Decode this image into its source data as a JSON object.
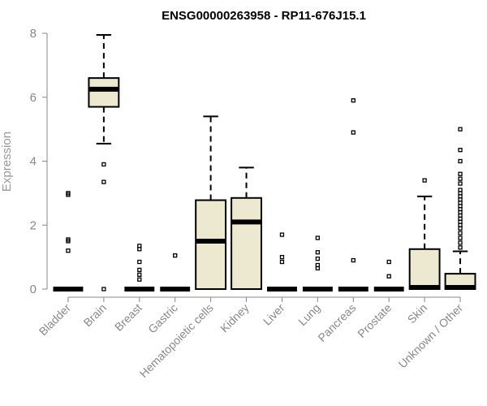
{
  "chart_data": {
    "type": "boxplot",
    "title": "ENSG00000263958 - RP11-676J15.1",
    "xlabel": "",
    "ylabel": "Expression",
    "ylim": [
      0,
      8
    ],
    "yticks": [
      0,
      2,
      4,
      6,
      8
    ],
    "colors": {
      "box_fill": "#ede8d0",
      "stroke": "#000000",
      "axis": "#888888",
      "tick_label": "#888888"
    },
    "categories": [
      "Bladder",
      "Brain",
      "Breast",
      "Gastric",
      "Hematopoietic cells",
      "Kidney",
      "Liver",
      "Lung",
      "Pancreas",
      "Prostate",
      "Skin",
      "Unknown / Other"
    ],
    "boxes": [
      {
        "name": "Bladder",
        "whisker_low": 0,
        "q1": 0,
        "median": 0,
        "q3": 0,
        "whisker_high": 0,
        "outliers": [
          1.2,
          1.5,
          1.55,
          2.95,
          3.0
        ]
      },
      {
        "name": "Brain",
        "whisker_low": 4.55,
        "q1": 5.7,
        "median": 6.25,
        "q3": 6.6,
        "whisker_high": 7.95,
        "outliers": [
          0,
          3.35,
          3.9
        ]
      },
      {
        "name": "Breast",
        "whisker_low": 0,
        "q1": 0,
        "median": 0,
        "q3": 0,
        "whisker_high": 0,
        "outliers": [
          0.3,
          0.45,
          0.6,
          0.85,
          1.25,
          1.35
        ]
      },
      {
        "name": "Gastric",
        "whisker_low": 0,
        "q1": 0,
        "median": 0,
        "q3": 0,
        "whisker_high": 0,
        "outliers": [
          1.05
        ]
      },
      {
        "name": "Hematopoietic cells",
        "whisker_low": 0,
        "q1": 0,
        "median": 1.5,
        "q3": 2.78,
        "whisker_high": 5.4,
        "outliers": []
      },
      {
        "name": "Kidney",
        "whisker_low": 0,
        "q1": 0,
        "median": 2.1,
        "q3": 2.85,
        "whisker_high": 3.8,
        "outliers": []
      },
      {
        "name": "Liver",
        "whisker_low": 0,
        "q1": 0,
        "median": 0,
        "q3": 0,
        "whisker_high": 0,
        "outliers": [
          0.85,
          1.0,
          1.7
        ]
      },
      {
        "name": "Lung",
        "whisker_low": 0,
        "q1": 0,
        "median": 0,
        "q3": 0,
        "whisker_high": 0,
        "outliers": [
          0.65,
          0.75,
          0.95,
          1.15,
          1.6
        ]
      },
      {
        "name": "Pancreas",
        "whisker_low": 0,
        "q1": 0,
        "median": 0,
        "q3": 0,
        "whisker_high": 0,
        "outliers": [
          0.9,
          4.9,
          5.9
        ]
      },
      {
        "name": "Prostate",
        "whisker_low": 0,
        "q1": 0,
        "median": 0,
        "q3": 0,
        "whisker_high": 0,
        "outliers": [
          0.4,
          0.85
        ]
      },
      {
        "name": "Skin",
        "whisker_low": 0,
        "q1": 0,
        "median": 0.05,
        "q3": 1.25,
        "whisker_high": 2.9,
        "outliers": [
          3.4
        ]
      },
      {
        "name": "Unknown / Other",
        "whisker_low": 0,
        "q1": 0,
        "median": 0.05,
        "q3": 0.48,
        "whisker_high": 1.18,
        "outliers": [
          1.3,
          1.45,
          1.6,
          1.75,
          1.9,
          2.0,
          2.1,
          2.2,
          2.3,
          2.4,
          2.5,
          2.6,
          2.7,
          2.8,
          2.9,
          3.0,
          3.1,
          3.3,
          3.45,
          3.6,
          4.0,
          4.35,
          5.0
        ]
      }
    ]
  }
}
